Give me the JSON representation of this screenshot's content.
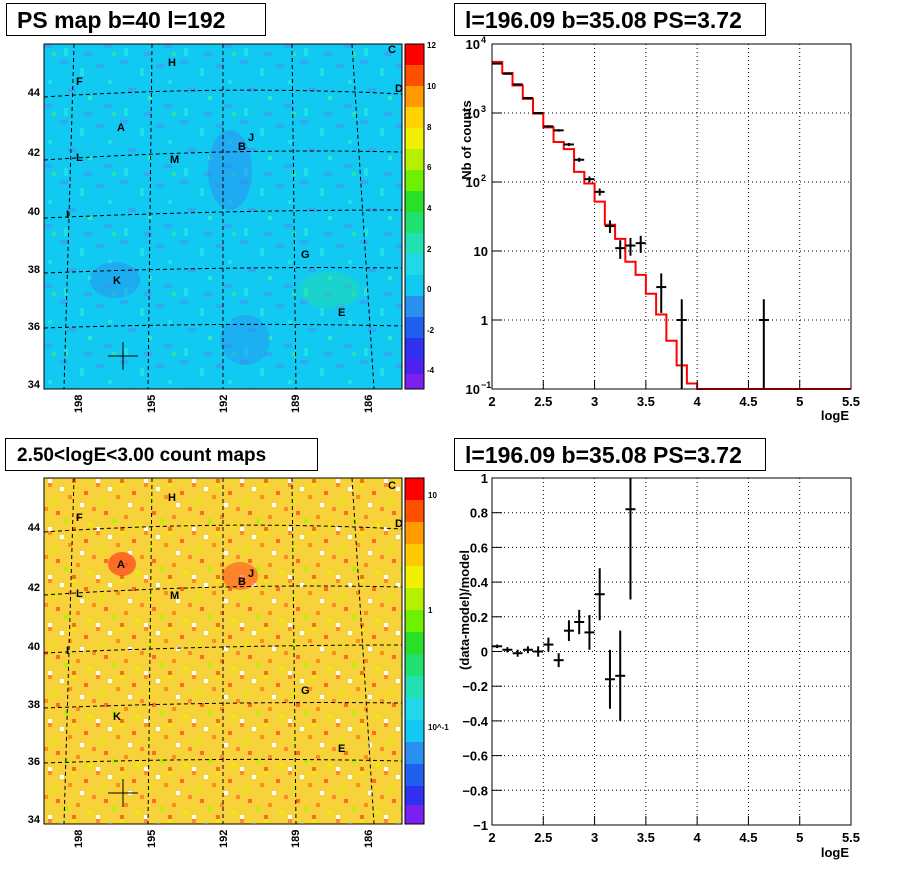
{
  "panels": {
    "tl_title": "PS map b=40 l=192",
    "tr_title": "l=196.09 b=35.08 PS=3.72",
    "bl_title": "2.50<logE<3.00 count maps",
    "br_title": "l=196.09 b=35.08 PS=3.72"
  },
  "chart_data": [
    {
      "type": "heatmap",
      "title": "PS map b=40 l=192",
      "x_ticks": [
        "198",
        "195",
        "192",
        "189",
        "186"
      ],
      "y_ticks": [
        "34",
        "36",
        "38",
        "40",
        "42",
        "44"
      ],
      "colorbar_ticks": [
        "12",
        "10",
        "8",
        "6",
        "4",
        "2",
        "0",
        "-2",
        "-4"
      ],
      "colorbar_range": [
        -5,
        12
      ],
      "dominant_value": 0,
      "source_labels": [
        "H",
        "C",
        "F",
        "D",
        "A",
        "B",
        "J",
        "L",
        "M",
        "I",
        "G",
        "K",
        "E"
      ],
      "marker": "cross at l=196.09 b=35.08"
    },
    {
      "type": "scatter",
      "title": "l=196.09 b=35.08 PS=3.72",
      "xlabel": "logE",
      "ylabel": "Nb of counts",
      "yscale": "log",
      "xlim": [
        2,
        5.5
      ],
      "ylim": [
        0.1,
        10000
      ],
      "x_ticks": [
        "2",
        "2.5",
        "3",
        "3.5",
        "4",
        "4.5",
        "5",
        "5.5"
      ],
      "y_ticks": [
        "10^-1",
        "1",
        "10",
        "10^2",
        "10^3",
        "10^4"
      ],
      "grid": true,
      "series": [
        {
          "kind": "data_with_errors",
          "points": [
            {
              "x": 2.05,
              "y": 5200
            },
            {
              "x": 2.15,
              "y": 3700
            },
            {
              "x": 2.25,
              "y": 2600
            },
            {
              "x": 2.35,
              "y": 1650
            },
            {
              "x": 2.45,
              "y": 1000
            },
            {
              "x": 2.55,
              "y": 640
            },
            {
              "x": 2.65,
              "y": 560
            },
            {
              "x": 2.75,
              "y": 350
            },
            {
              "x": 2.85,
              "y": 210
            },
            {
              "x": 2.95,
              "y": 110
            },
            {
              "x": 3.05,
              "y": 72
            },
            {
              "x": 3.15,
              "y": 23
            },
            {
              "x": 3.25,
              "y": 11
            },
            {
              "x": 3.35,
              "y": 12
            },
            {
              "x": 3.45,
              "y": 13
            },
            {
              "x": 3.65,
              "y": 3
            },
            {
              "x": 3.85,
              "y": 1
            },
            {
              "x": 4.65,
              "y": 1
            }
          ]
        },
        {
          "kind": "model_step",
          "color": "#ff0000",
          "bins": [
            {
              "x0": 2.0,
              "x1": 2.1,
              "y": 5500
            },
            {
              "x0": 2.1,
              "x1": 2.2,
              "y": 3800
            },
            {
              "x0": 2.2,
              "x1": 2.3,
              "y": 2500
            },
            {
              "x0": 2.3,
              "x1": 2.4,
              "y": 1600
            },
            {
              "x0": 2.4,
              "x1": 2.5,
              "y": 980
            },
            {
              "x0": 2.5,
              "x1": 2.6,
              "y": 620
            },
            {
              "x0": 2.6,
              "x1": 2.7,
              "y": 380
            },
            {
              "x0": 2.7,
              "x1": 2.8,
              "y": 300
            },
            {
              "x0": 2.8,
              "x1": 2.9,
              "y": 140
            },
            {
              "x0": 2.9,
              "x1": 3.0,
              "y": 95
            },
            {
              "x0": 3.0,
              "x1": 3.1,
              "y": 52
            },
            {
              "x0": 3.1,
              "x1": 3.2,
              "y": 24
            },
            {
              "x0": 3.2,
              "x1": 3.3,
              "y": 15
            },
            {
              "x0": 3.3,
              "x1": 3.4,
              "y": 7
            },
            {
              "x0": 3.4,
              "x1": 3.5,
              "y": 4.5
            },
            {
              "x0": 3.5,
              "x1": 3.6,
              "y": 2.4
            },
            {
              "x0": 3.6,
              "x1": 3.7,
              "y": 1.2
            },
            {
              "x0": 3.7,
              "x1": 3.8,
              "y": 0.5
            },
            {
              "x0": 3.8,
              "x1": 3.9,
              "y": 0.22
            },
            {
              "x0": 3.9,
              "x1": 4.0,
              "y": 0.12
            },
            {
              "x0": 4.0,
              "x1": 5.5,
              "y": 0.1
            }
          ]
        }
      ]
    },
    {
      "type": "heatmap",
      "title": "2.50<logE<3.00 count maps",
      "x_ticks": [
        "198",
        "195",
        "192",
        "189",
        "186"
      ],
      "y_ticks": [
        "34",
        "36",
        "38",
        "40",
        "42",
        "44"
      ],
      "colorbar_ticks": [
        "10",
        "1",
        "10^-1"
      ],
      "colorbar_scale": "log",
      "source_labels": [
        "H",
        "C",
        "F",
        "D",
        "A",
        "B",
        "J",
        "L",
        "M",
        "I",
        "G",
        "K",
        "E"
      ],
      "marker": "cross at l=196.09 b=35.08"
    },
    {
      "type": "scatter",
      "title": "l=196.09 b=35.08 PS=3.72",
      "xlabel": "logE",
      "ylabel": "(data-model)/model",
      "xlim": [
        2,
        5.5
      ],
      "ylim": [
        -1,
        1
      ],
      "x_ticks": [
        "2",
        "2.5",
        "3",
        "3.5",
        "4",
        "4.5",
        "5",
        "5.5"
      ],
      "y_ticks": [
        "-1",
        "-0.8",
        "-0.6",
        "-0.4",
        "-0.2",
        "0",
        "0.2",
        "0.4",
        "0.6",
        "0.8",
        "1"
      ],
      "grid": true,
      "points": [
        {
          "x": 2.05,
          "y": 0.03,
          "err": 0.01
        },
        {
          "x": 2.15,
          "y": 0.01,
          "err": 0.015
        },
        {
          "x": 2.25,
          "y": -0.01,
          "err": 0.02
        },
        {
          "x": 2.35,
          "y": 0.01,
          "err": 0.02
        },
        {
          "x": 2.45,
          "y": 0.0,
          "err": 0.03
        },
        {
          "x": 2.55,
          "y": 0.04,
          "err": 0.04
        },
        {
          "x": 2.65,
          "y": -0.05,
          "err": 0.04
        },
        {
          "x": 2.75,
          "y": 0.12,
          "err": 0.06
        },
        {
          "x": 2.85,
          "y": 0.17,
          "err": 0.07
        },
        {
          "x": 2.95,
          "y": 0.11,
          "err": 0.1
        },
        {
          "x": 3.05,
          "y": 0.33,
          "err": 0.15
        },
        {
          "x": 3.15,
          "y": -0.16,
          "err": 0.17
        },
        {
          "x": 3.25,
          "y": -0.14,
          "err": 0.26
        },
        {
          "x": 3.35,
          "y": 0.82,
          "err": 0.52
        }
      ]
    }
  ]
}
